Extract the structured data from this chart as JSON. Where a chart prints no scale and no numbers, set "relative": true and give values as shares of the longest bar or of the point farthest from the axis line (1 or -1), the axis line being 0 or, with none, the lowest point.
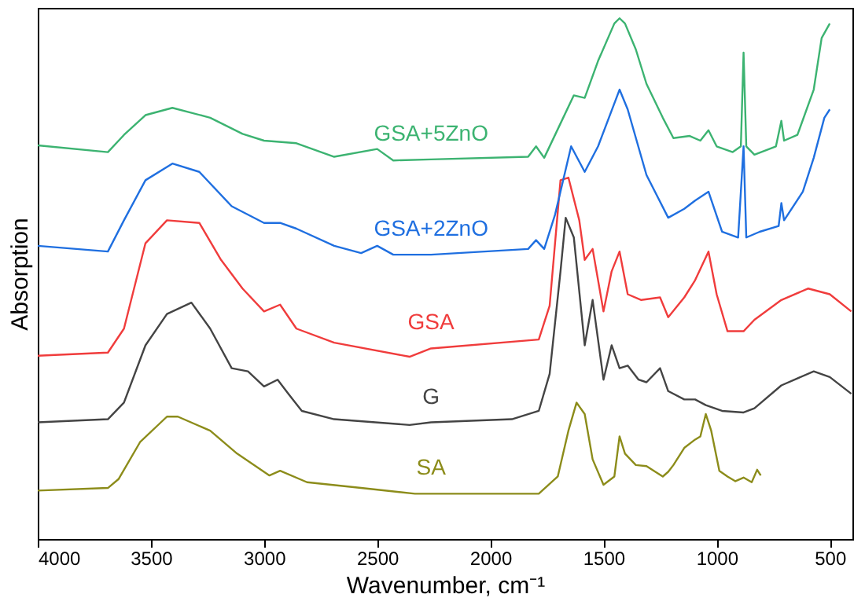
{
  "chart_data": {
    "type": "line",
    "xlabel": "Wavenumber, cm⁻¹",
    "ylabel": "Absorption",
    "relative": true,
    "xlim": [
      4000,
      400
    ],
    "xticks": [
      4000,
      3500,
      3000,
      2500,
      2000,
      1500,
      1000,
      500
    ],
    "tick_labels": "x",
    "grid": false,
    "legend": false,
    "marker": "none",
    "line_style": "solid",
    "series": [
      {
        "name": "SA",
        "color": "#8c8c1a",
        "x": [
          4000,
          3690,
          3643,
          3548,
          3429,
          3381,
          3238,
          3119,
          2976,
          2929,
          2810,
          2571,
          2333,
          2262,
          1786,
          1702,
          1655,
          1619,
          1583,
          1548,
          1500,
          1452,
          1429,
          1405,
          1357,
          1310,
          1238,
          1214,
          1191,
          1143,
          1095,
          1072,
          1048,
          1024,
          988,
          952,
          917,
          881,
          845,
          821,
          805
        ],
        "values": [
          0.093,
          0.098,
          0.115,
          0.186,
          0.235,
          0.235,
          0.208,
          0.164,
          0.122,
          0.131,
          0.109,
          0.098,
          0.087,
          0.087,
          0.087,
          0.12,
          0.208,
          0.262,
          0.24,
          0.153,
          0.104,
          0.12,
          0.197,
          0.164,
          0.142,
          0.14,
          0.12,
          0.129,
          0.142,
          0.175,
          0.191,
          0.197,
          0.24,
          0.208,
          0.131,
          0.12,
          0.111,
          0.118,
          0.109,
          0.133,
          0.122
        ]
      },
      {
        "name": "G",
        "color": "#444444",
        "x": [
          4000,
          3690,
          3619,
          3524,
          3429,
          3321,
          3238,
          3143,
          3071,
          3000,
          2940,
          2893,
          2833,
          2690,
          2357,
          2262,
          1905,
          1786,
          1738,
          1690,
          1667,
          1631,
          1583,
          1548,
          1500,
          1464,
          1429,
          1393,
          1345,
          1310,
          1250,
          1214,
          1143,
          1095,
          1048,
          976,
          881,
          833,
          714,
          571,
          500,
          405
        ],
        "values": [
          0.224,
          0.23,
          0.262,
          0.372,
          0.432,
          0.454,
          0.404,
          0.328,
          0.322,
          0.293,
          0.306,
          0.279,
          0.246,
          0.23,
          0.219,
          0.224,
          0.23,
          0.246,
          0.317,
          0.514,
          0.617,
          0.579,
          0.372,
          0.459,
          0.306,
          0.372,
          0.328,
          0.333,
          0.306,
          0.301,
          0.328,
          0.284,
          0.268,
          0.268,
          0.257,
          0.246,
          0.243,
          0.251,
          0.295,
          0.322,
          0.311,
          0.279
        ]
      },
      {
        "name": "GSA",
        "color": "#f03c3c",
        "x": [
          4000,
          3690,
          3619,
          3524,
          3429,
          3286,
          3190,
          3095,
          3000,
          2929,
          2857,
          2690,
          2357,
          2262,
          1786,
          1738,
          1690,
          1655,
          1607,
          1583,
          1548,
          1500,
          1464,
          1429,
          1393,
          1333,
          1250,
          1214,
          1143,
          1095,
          1036,
          1000,
          952,
          881,
          833,
          714,
          595,
          500,
          405
        ],
        "values": [
          0.352,
          0.358,
          0.404,
          0.568,
          0.612,
          0.607,
          0.536,
          0.481,
          0.437,
          0.45,
          0.404,
          0.377,
          0.35,
          0.366,
          0.383,
          0.448,
          0.689,
          0.694,
          0.612,
          0.536,
          0.557,
          0.437,
          0.514,
          0.552,
          0.47,
          0.459,
          0.464,
          0.426,
          0.464,
          0.497,
          0.552,
          0.47,
          0.399,
          0.399,
          0.421,
          0.459,
          0.481,
          0.47,
          0.437
        ]
      },
      {
        "name": "GSA+2ZnO",
        "color": "#1f6fe0",
        "x": [
          4000,
          3690,
          3619,
          3524,
          3405,
          3286,
          3143,
          3000,
          2929,
          2857,
          2690,
          2571,
          2500,
          2429,
          2262,
          1833,
          1798,
          1762,
          1714,
          1643,
          1583,
          1524,
          1429,
          1393,
          1310,
          1214,
          1143,
          1095,
          1036,
          976,
          905,
          881,
          869,
          810,
          726,
          714,
          702,
          619,
          571,
          524,
          500
        ],
        "values": [
          0.563,
          0.552,
          0.612,
          0.689,
          0.721,
          0.705,
          0.639,
          0.607,
          0.607,
          0.596,
          0.563,
          0.549,
          0.563,
          0.546,
          0.546,
          0.557,
          0.574,
          0.557,
          0.623,
          0.754,
          0.705,
          0.754,
          0.863,
          0.825,
          0.699,
          0.617,
          0.634,
          0.65,
          0.667,
          0.59,
          0.579,
          0.754,
          0.579,
          0.59,
          0.601,
          0.645,
          0.612,
          0.667,
          0.732,
          0.809,
          0.825
        ]
      },
      {
        "name": "GSA+5ZnO",
        "color": "#3cb371",
        "x": [
          4000,
          3690,
          3619,
          3524,
          3405,
          3238,
          3095,
          3000,
          2857,
          2690,
          2500,
          2429,
          2262,
          1833,
          1798,
          1762,
          1690,
          1631,
          1583,
          1524,
          1452,
          1429,
          1405,
          1357,
          1310,
          1238,
          1191,
          1119,
          1072,
          1036,
          1000,
          929,
          893,
          881,
          869,
          833,
          738,
          714,
          702,
          643,
          571,
          536,
          500
        ],
        "values": [
          0.756,
          0.743,
          0.776,
          0.814,
          0.828,
          0.809,
          0.778,
          0.765,
          0.76,
          0.734,
          0.749,
          0.727,
          0.729,
          0.734,
          0.754,
          0.732,
          0.798,
          0.852,
          0.847,
          0.918,
          0.99,
          1.0,
          0.99,
          0.94,
          0.874,
          0.809,
          0.77,
          0.774,
          0.765,
          0.785,
          0.754,
          0.743,
          0.754,
          0.934,
          0.754,
          0.738,
          0.754,
          0.803,
          0.765,
          0.776,
          0.863,
          0.962,
          0.99
        ]
      }
    ]
  }
}
